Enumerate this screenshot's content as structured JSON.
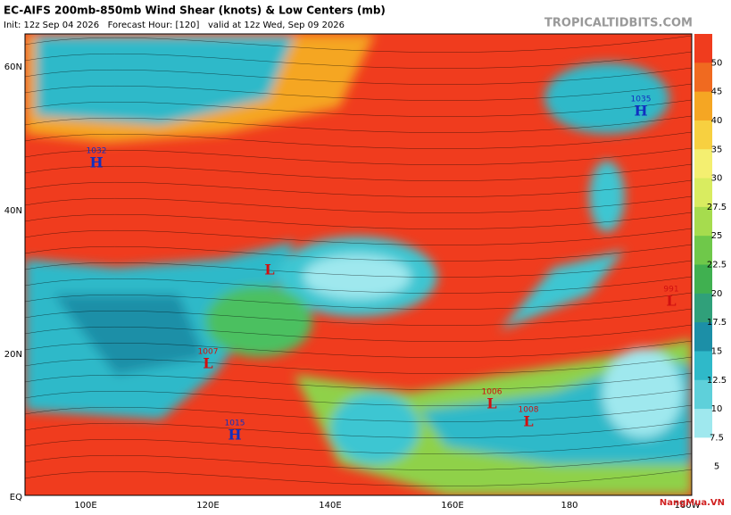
{
  "header": {
    "title": "EC-AIFS 200mb-850mb Wind Shear (knots) & Low Centers (mb)",
    "subtitle": "Init: 12z Sep 04 2026   Forecast Hour: [120]   valid at 12z Wed, Sep 09 2026",
    "source": "TROPICALTIDBITS.COM"
  },
  "map": {
    "lat_labels": [
      "60N",
      "40N",
      "20N",
      "EQ"
    ],
    "lon_labels": [
      "100E",
      "120E",
      "140E",
      "160E",
      "180",
      "160W"
    ],
    "centers": [
      {
        "letter": "H",
        "pressure": "1032"
      },
      {
        "letter": "H",
        "pressure": "1035"
      },
      {
        "letter": "L"
      },
      {
        "letter": "L",
        "pressure": "1007"
      },
      {
        "letter": "L",
        "pressure": "991"
      },
      {
        "letter": "L",
        "pressure": "1006"
      },
      {
        "letter": "L",
        "pressure": "1008"
      },
      {
        "letter": "H",
        "pressure": "1015"
      }
    ]
  },
  "colorbar": {
    "ticks": [
      50,
      45,
      40,
      35,
      30,
      27.5,
      25,
      22.5,
      20,
      17.5,
      15,
      12.5,
      10,
      7.5,
      5
    ]
  },
  "watermark": "NangMua.VN"
}
